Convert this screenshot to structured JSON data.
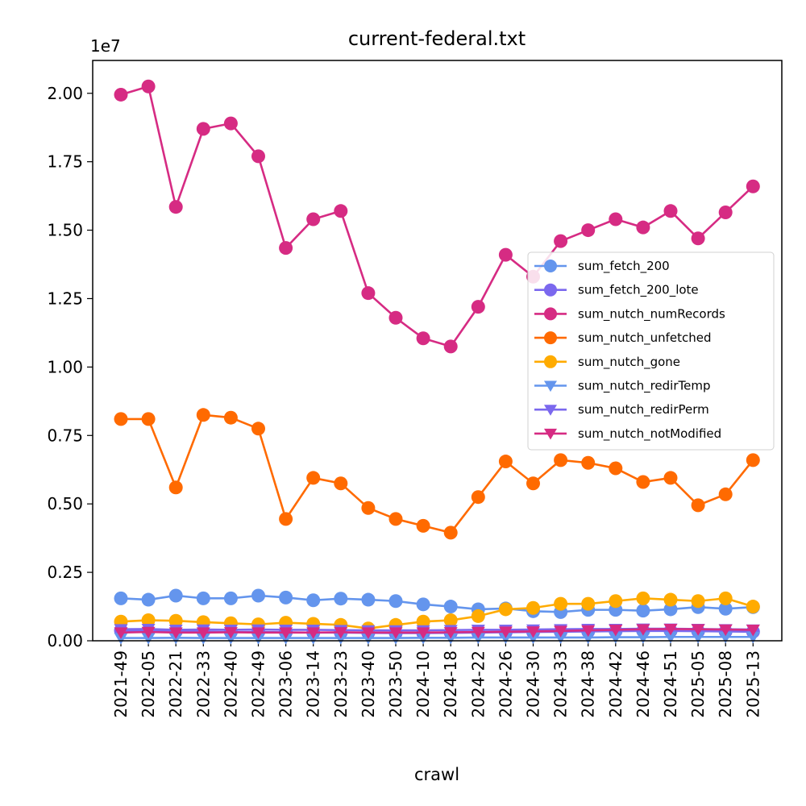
{
  "chart_data": {
    "type": "line",
    "title": "current-federal.txt",
    "xlabel": "crawl",
    "ylabel": "",
    "y_scale_label": "1e7",
    "ylim": [
      0,
      21200000
    ],
    "y_ticks": [
      0,
      2500000,
      5000000,
      7500000,
      10000000,
      12500000,
      15000000,
      17500000,
      20000000
    ],
    "y_tick_labels": [
      "0.00",
      "0.25",
      "0.50",
      "0.75",
      "1.00",
      "1.25",
      "1.50",
      "1.75",
      "2.00"
    ],
    "legend_position": "center-right",
    "grid": false,
    "categories": [
      "2021-49",
      "2022-05",
      "2022-21",
      "2022-33",
      "2022-40",
      "2022-49",
      "2023-06",
      "2023-14",
      "2023-23",
      "2023-40",
      "2023-50",
      "2024-10",
      "2024-18",
      "2024-22",
      "2024-26",
      "2024-30",
      "2024-33",
      "2024-38",
      "2024-42",
      "2024-46",
      "2024-51",
      "2025-05",
      "2025-08",
      "2025-13"
    ],
    "series": [
      {
        "name": "sum_fetch_200",
        "color": "#6495ed",
        "marker": "circle",
        "values": [
          1550000,
          1500000,
          1650000,
          1550000,
          1550000,
          1650000,
          1580000,
          1480000,
          1540000,
          1500000,
          1450000,
          1330000,
          1250000,
          1150000,
          1180000,
          1080000,
          1050000,
          1130000,
          1130000,
          1100000,
          1150000,
          1230000,
          1170000,
          1230000
        ]
      },
      {
        "name": "sum_fetch_200_lote",
        "color": "#7b68ee",
        "marker": "circle",
        "values": [
          380000,
          360000,
          340000,
          330000,
          320000,
          320000,
          310000,
          300000,
          300000,
          290000,
          280000,
          280000,
          290000,
          300000,
          310000,
          320000,
          330000,
          340000,
          350000,
          360000,
          360000,
          350000,
          340000,
          330000
        ]
      },
      {
        "name": "sum_nutch_numRecords",
        "color": "#d62b83",
        "marker": "circle",
        "values": [
          19950000,
          20250000,
          15850000,
          18700000,
          18900000,
          17700000,
          14350000,
          15400000,
          15700000,
          12700000,
          11800000,
          11050000,
          10750000,
          12200000,
          14100000,
          13300000,
          14600000,
          15000000,
          15400000,
          15100000,
          15700000,
          14700000,
          15650000,
          16600000
        ]
      },
      {
        "name": "sum_nutch_unfetched",
        "color": "#ff6a00",
        "marker": "circle",
        "values": [
          8100000,
          8100000,
          5600000,
          8250000,
          8150000,
          7750000,
          4450000,
          5950000,
          5750000,
          4850000,
          4450000,
          4200000,
          3950000,
          5250000,
          6550000,
          5750000,
          6600000,
          6500000,
          6300000,
          5800000,
          5950000,
          4950000,
          5350000,
          6600000
        ]
      },
      {
        "name": "sum_nutch_gone",
        "color": "#ffab00",
        "marker": "circle",
        "values": [
          700000,
          750000,
          730000,
          680000,
          640000,
          600000,
          660000,
          620000,
          580000,
          450000,
          580000,
          700000,
          750000,
          900000,
          1150000,
          1200000,
          1350000,
          1350000,
          1450000,
          1550000,
          1500000,
          1450000,
          1550000,
          1250000
        ]
      },
      {
        "name": "sum_nutch_redirTemp",
        "color": "#6495ed",
        "marker": "triangle-down",
        "values": [
          100000,
          100000,
          110000,
          100000,
          100000,
          100000,
          100000,
          100000,
          100000,
          100000,
          100000,
          110000,
          110000,
          120000,
          120000,
          120000,
          120000,
          120000,
          130000,
          130000,
          140000,
          140000,
          140000,
          140000
        ]
      },
      {
        "name": "sum_nutch_redirPerm",
        "color": "#7b68ee",
        "marker": "triangle-down",
        "values": [
          420000,
          430000,
          400000,
          410000,
          400000,
          410000,
          400000,
          400000,
          390000,
          380000,
          380000,
          380000,
          390000,
          400000,
          400000,
          410000,
          420000,
          430000,
          430000,
          440000,
          440000,
          430000,
          420000,
          410000
        ]
      },
      {
        "name": "sum_nutch_notModified",
        "color": "#d62b83",
        "marker": "triangle-down",
        "values": [
          300000,
          320000,
          300000,
          300000,
          310000,
          300000,
          300000,
          300000,
          310000,
          300000,
          300000,
          300000,
          310000,
          320000,
          330000,
          340000,
          360000,
          380000,
          400000,
          420000,
          430000,
          420000,
          410000,
          400000
        ]
      }
    ]
  }
}
